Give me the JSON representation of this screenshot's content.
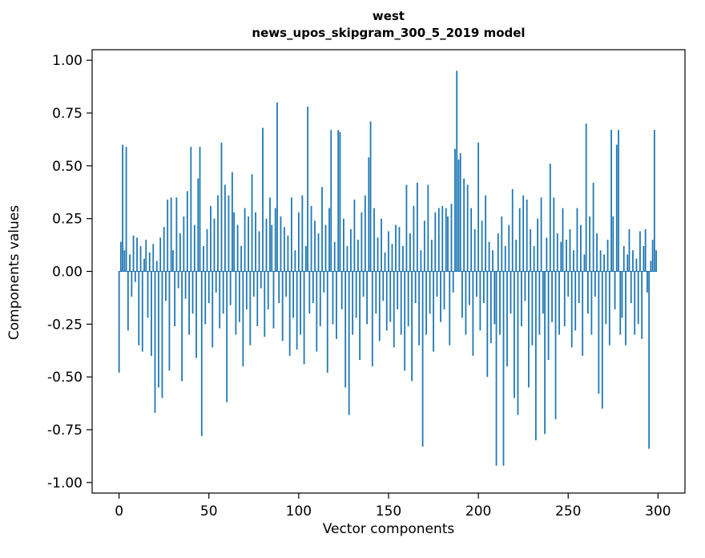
{
  "chart_data": {
    "type": "bar",
    "title": "west",
    "subtitle": "news_upos_skipgram_300_5_2019 model",
    "xlabel": "Vector components",
    "ylabel": "Components values",
    "xlim": [
      -15,
      315
    ],
    "ylim": [
      -1.05,
      1.05
    ],
    "x_ticks": [
      0,
      50,
      100,
      150,
      200,
      250,
      300
    ],
    "y_ticks": [
      -1.0,
      -0.75,
      -0.5,
      -0.25,
      0.0,
      0.25,
      0.5,
      0.75,
      1.0
    ],
    "grid": false,
    "legend": "none",
    "bar_color": "#1f77b4",
    "n_components": 300,
    "values": [
      -0.48,
      0.14,
      0.6,
      0.1,
      0.59,
      -0.28,
      0.08,
      -0.12,
      0.17,
      -0.05,
      0.16,
      -0.35,
      0.12,
      -0.38,
      0.06,
      0.15,
      -0.22,
      0.09,
      -0.4,
      0.13,
      -0.67,
      0.05,
      -0.55,
      0.16,
      -0.6,
      0.21,
      -0.14,
      0.34,
      -0.47,
      0.35,
      0.1,
      -0.26,
      0.35,
      -0.08,
      0.18,
      -0.52,
      0.26,
      -0.13,
      0.38,
      -0.3,
      0.59,
      -0.2,
      0.22,
      -0.41,
      0.44,
      0.59,
      -0.78,
      0.12,
      -0.25,
      0.2,
      -0.15,
      0.31,
      -0.36,
      0.25,
      -0.1,
      0.36,
      -0.27,
      0.61,
      -0.2,
      0.41,
      -0.62,
      0.36,
      -0.16,
      0.47,
      0.28,
      -0.3,
      0.22,
      -0.24,
      0.12,
      -0.45,
      0.3,
      -0.18,
      0.26,
      -0.35,
      0.46,
      -0.12,
      0.28,
      -0.26,
      0.19,
      -0.08,
      0.68,
      -0.31,
      0.25,
      -0.18,
      0.35,
      0.22,
      -0.27,
      0.3,
      0.8,
      -0.15,
      0.26,
      -0.33,
      0.21,
      -0.12,
      0.17,
      -0.4,
      0.35,
      -0.22,
      0.1,
      -0.37,
      0.28,
      -0.3,
      0.36,
      -0.44,
      0.12,
      0.78,
      -0.2,
      0.31,
      -0.15,
      0.24,
      -0.38,
      0.18,
      -0.26,
      0.4,
      -0.1,
      0.22,
      -0.48,
      0.3,
      0.67,
      -0.25,
      0.14,
      -0.32,
      0.67,
      0.66,
      -0.18,
      0.25,
      -0.55,
      0.12,
      -0.68,
      0.2,
      -0.3,
      0.34,
      -0.22,
      0.15,
      -0.42,
      0.28,
      -0.12,
      0.36,
      -0.25,
      0.54,
      0.71,
      -0.45,
      0.3,
      -0.2,
      0.16,
      -0.33,
      0.25,
      -0.14,
      0.09,
      -0.28,
      0.19,
      -0.24,
      0.13,
      -0.36,
      0.22,
      -0.18,
      0.21,
      -0.3,
      0.12,
      -0.47,
      0.41,
      -0.26,
      0.18,
      -0.52,
      0.31,
      -0.15,
      0.42,
      -0.35,
      0.1,
      -0.83,
      0.24,
      -0.3,
      0.41,
      -0.2,
      0.15,
      -0.38,
      0.28,
      -0.12,
      0.3,
      -0.24,
      0.31,
      -0.18,
      0.3,
      0.26,
      -0.35,
      0.32,
      -0.1,
      0.58,
      0.95,
      0.53,
      0.56,
      -0.22,
      0.44,
      -0.3,
      0.41,
      -0.16,
      0.3,
      -0.4,
      0.2,
      -0.12,
      0.61,
      -0.28,
      0.24,
      -0.15,
      0.36,
      -0.5,
      0.14,
      -0.34,
      0.1,
      -0.25,
      -0.92,
      0.18,
      -0.3,
      0.26,
      -0.92,
      0.12,
      -0.45,
      0.22,
      -0.2,
      0.39,
      -0.6,
      0.15,
      -0.68,
      0.3,
      -0.26,
      0.36,
      -0.14,
      0.34,
      -0.55,
      0.2,
      -0.35,
      0.12,
      -0.8,
      0.25,
      -0.3,
      0.35,
      -0.2,
      -0.77,
      0.16,
      -0.42,
      0.51,
      -0.24,
      0.35,
      -0.7,
      0.18,
      -0.3,
      0.14,
      0.3,
      -0.26,
      0.15,
      -0.12,
      0.2,
      -0.36,
      0.1,
      -0.28,
      0.3,
      -0.15,
      0.22,
      -0.4,
      0.08,
      0.7,
      -0.2,
      0.26,
      -0.3,
      0.42,
      -0.12,
      0.18,
      -0.58,
      0.1,
      -0.65,
      0.08,
      -0.25,
      0.15,
      -0.35,
      0.67,
      0.26,
      -0.18,
      0.6,
      0.67,
      -0.3,
      -0.22,
      0.12,
      -0.35,
      0.08,
      0.2,
      -0.15,
      0.1,
      -0.3,
      0.06,
      -0.25,
      0.19,
      -0.32,
      0.12,
      0.2,
      -0.1,
      -0.84,
      0.05,
      0.15,
      0.67,
      0.1
    ]
  }
}
